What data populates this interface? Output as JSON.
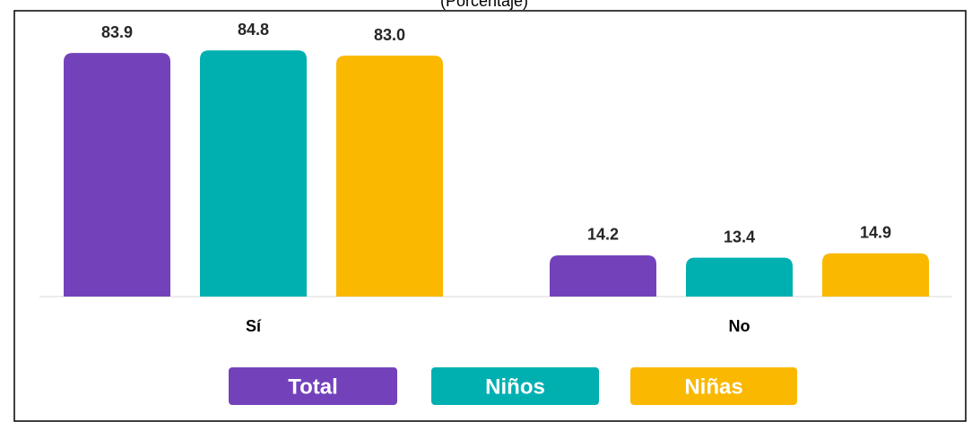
{
  "chart_data": {
    "type": "bar",
    "subtitle": "(Porcentaje)",
    "categories": [
      "Sí",
      "No"
    ],
    "series": [
      {
        "name": "Total",
        "color": "#7342bb",
        "values": [
          83.9,
          14.2
        ]
      },
      {
        "name": "Niños",
        "color": "#00b0b1",
        "values": [
          84.8,
          13.4
        ]
      },
      {
        "name": "Niñas",
        "color": "#fab800",
        "values": [
          83.0,
          14.9
        ]
      }
    ],
    "value_labels": [
      [
        "83.9",
        "14.2"
      ],
      [
        "84.8",
        "13.4"
      ],
      [
        "83.0",
        "14.9"
      ]
    ],
    "ylim": [
      0,
      100
    ],
    "legend": "bottom"
  }
}
